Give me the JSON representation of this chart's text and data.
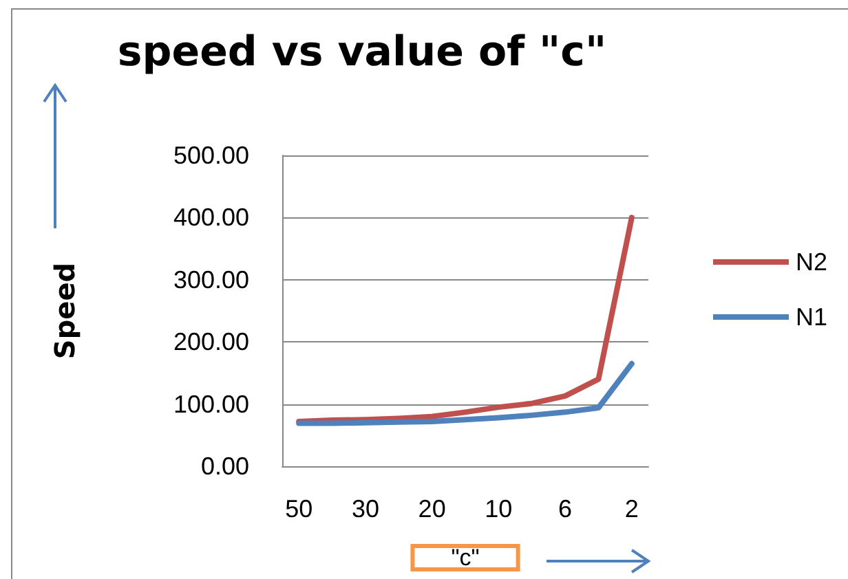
{
  "chart_data": {
    "type": "line",
    "title": "speed vs value of \"c\"",
    "xlabel": "\"c\"",
    "ylabel": "Speed",
    "categories": [
      "50",
      null,
      "30",
      null,
      "20",
      null,
      "10",
      null,
      "6",
      null,
      "2"
    ],
    "series": [
      {
        "name": "N2",
        "color": "#c0504d",
        "values": [
          72,
          74,
          75,
          77,
          80,
          87,
          95,
          101,
          113,
          140,
          400
        ]
      },
      {
        "name": "N1",
        "color": "#4f81bd",
        "values": [
          69,
          69,
          70,
          71,
          72,
          75,
          78,
          82,
          87,
          94,
          165
        ]
      }
    ],
    "ylim": [
      0,
      500
    ],
    "yticks": [
      {
        "value": 0,
        "label": "0.00"
      },
      {
        "value": 100,
        "label": "100.00"
      },
      {
        "value": 200,
        "label": "200.00"
      },
      {
        "value": 300,
        "label": "300.00"
      },
      {
        "value": 400,
        "label": "400.00"
      },
      {
        "value": 500,
        "label": "500.00"
      }
    ],
    "grid": "y",
    "legend": "right",
    "marker": "none",
    "line_style": "solid"
  }
}
